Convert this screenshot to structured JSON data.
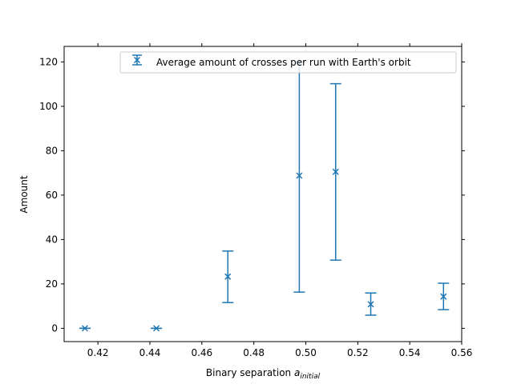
{
  "chart_data": {
    "type": "scatter",
    "title": "",
    "xlabel_main": "Binary separation ",
    "xlabel_symbol": "a",
    "xlabel_subscript": "initial",
    "ylabel": "Amount",
    "xlim": [
      0.407,
      0.56
    ],
    "ylim": [
      -6,
      127
    ],
    "xticks": [
      0.42,
      0.44,
      0.46,
      0.48,
      0.5,
      0.52,
      0.54,
      0.56
    ],
    "xtick_labels": [
      "0.42",
      "0.44",
      "0.46",
      "0.48",
      "0.50",
      "0.52",
      "0.54",
      "0.56"
    ],
    "yticks": [
      0,
      20,
      40,
      60,
      80,
      100,
      120
    ],
    "ytick_labels": [
      "0",
      "20",
      "40",
      "60",
      "80",
      "100",
      "120"
    ],
    "grid": false,
    "legend_position": "top-right",
    "series": [
      {
        "name": "Average amount of crosses per run with Earth's orbit",
        "color": "#1f77b4",
        "marker": "x",
        "points": [
          {
            "x": 0.415,
            "y": 0.0,
            "ylow": 0.0,
            "yhigh": 0.0
          },
          {
            "x": 0.4425,
            "y": 0.0,
            "ylow": 0.0,
            "yhigh": 0.0
          },
          {
            "x": 0.47,
            "y": 23.3,
            "ylow": 11.6,
            "yhigh": 34.8
          },
          {
            "x": 0.4975,
            "y": 68.8,
            "ylow": 16.3,
            "yhigh": 120.0
          },
          {
            "x": 0.5115,
            "y": 70.5,
            "ylow": 30.7,
            "yhigh": 110.2
          },
          {
            "x": 0.525,
            "y": 10.8,
            "ylow": 5.9,
            "yhigh": 15.9
          },
          {
            "x": 0.553,
            "y": 14.3,
            "ylow": 8.4,
            "yhigh": 20.3
          }
        ]
      }
    ]
  }
}
